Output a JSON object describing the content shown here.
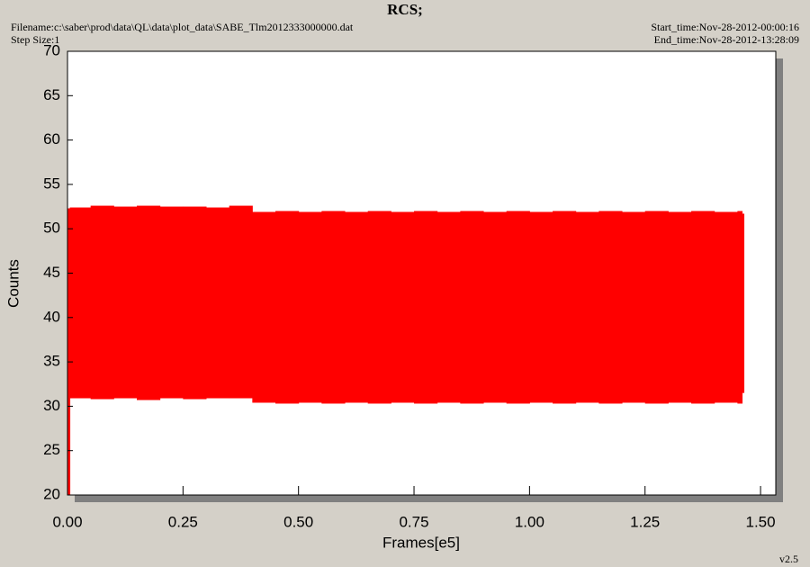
{
  "chart_data": {
    "type": "range_area",
    "title": "RCS;",
    "filename": "Filename:c:\\saber\\prod\\data\\QL\\data\\plot_data\\SABE_Tlm2012333000000.dat",
    "step_size": "Step Size:1",
    "start_time": "Start_time:Nov-28-2012-00:00:16",
    "end_time": "End_time:Nov-28-2012-13:28:09",
    "version": "v2.5",
    "xlabel": "Frames[e5]",
    "ylabel": "Counts",
    "color": "#ff0000",
    "xlim": [
      0,
      1.533
    ],
    "ylim": [
      20,
      70
    ],
    "xticks": [
      {
        "value": 0,
        "label": "0.00"
      },
      {
        "value": 0.25,
        "label": "0.25"
      },
      {
        "value": 0.5,
        "label": "0.50"
      },
      {
        "value": 0.75,
        "label": "0.75"
      },
      {
        "value": 1,
        "label": "1.00"
      },
      {
        "value": 1.25,
        "label": "1.25"
      },
      {
        "value": 1.5,
        "label": "1.50"
      }
    ],
    "yticks": [
      20,
      25,
      30,
      35,
      40,
      45,
      50,
      55,
      60,
      65,
      70
    ],
    "x": [
      0,
      0.005,
      0.05,
      0.1,
      0.15,
      0.2,
      0.25,
      0.3,
      0.35,
      0.4,
      0.45,
      0.5,
      0.55,
      0.6,
      0.65,
      0.7,
      0.75,
      0.8,
      0.85,
      0.9,
      0.95,
      1,
      1.05,
      1.1,
      1.15,
      1.2,
      1.25,
      1.3,
      1.35,
      1.4,
      1.45,
      1.46
    ],
    "high": [
      52.3,
      52.4,
      52.6,
      52.5,
      52.6,
      52.5,
      52.5,
      52.4,
      52.6,
      51.9,
      52.0,
      51.9,
      52.0,
      51.9,
      52.0,
      51.9,
      52.0,
      51.9,
      52.0,
      51.9,
      52.0,
      51.9,
      52.0,
      51.9,
      52.0,
      51.9,
      52.0,
      51.9,
      52.0,
      51.9,
      52.0,
      51.7
    ],
    "low": [
      20,
      30.9,
      30.8,
      30.9,
      30.7,
      30.9,
      30.8,
      30.9,
      30.9,
      30.4,
      30.3,
      30.4,
      30.3,
      30.4,
      30.3,
      30.4,
      30.3,
      30.4,
      30.3,
      30.4,
      30.3,
      30.4,
      30.3,
      30.4,
      30.3,
      30.4,
      30.3,
      30.4,
      30.3,
      30.4,
      30.3,
      31.5
    ]
  }
}
